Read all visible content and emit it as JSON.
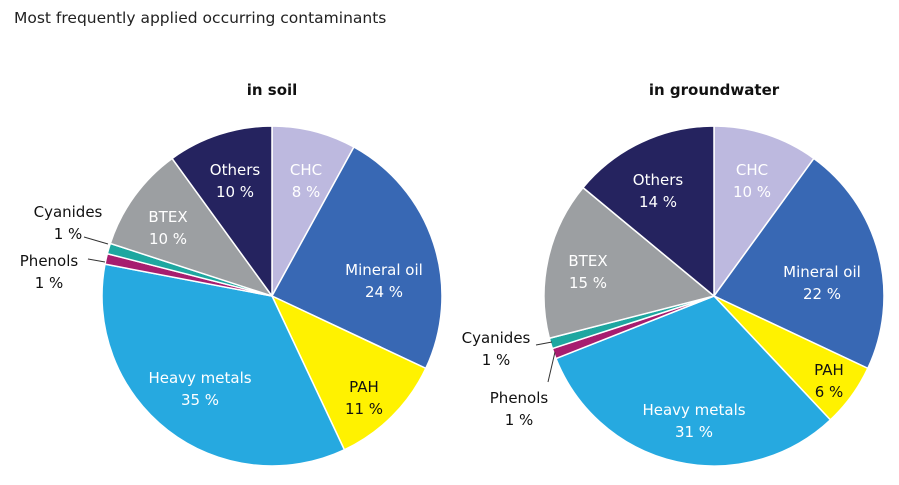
{
  "title": "Most frequently applied occurring contaminants",
  "chart_data": [
    {
      "type": "pie",
      "title": "in soil",
      "unit": "%",
      "slices": [
        {
          "name": "CHC",
          "value": 8,
          "label": "8 %",
          "color": "#BDB9DF"
        },
        {
          "name": "Mineral oil",
          "value": 24,
          "label": "24 %",
          "color": "#3868B4"
        },
        {
          "name": "PAH",
          "value": 11,
          "label": "11 %",
          "color": "#FFF200"
        },
        {
          "name": "Heavy metals",
          "value": 35,
          "label": "35 %",
          "color": "#26A9E0"
        },
        {
          "name": "Phenols",
          "value": 1,
          "label": "1 %",
          "color": "#A71D6F"
        },
        {
          "name": "Cyanides",
          "value": 1,
          "label": "1 %",
          "color": "#1EA7A0"
        },
        {
          "name": "BTEX",
          "value": 10,
          "label": "10 %",
          "color": "#9C9FA2"
        },
        {
          "name": "Others",
          "value": 10,
          "label": "10 %",
          "color": "#25235F"
        }
      ]
    },
    {
      "type": "pie",
      "title": "in groundwater",
      "unit": "%",
      "slices": [
        {
          "name": "CHC",
          "value": 10,
          "label": "10 %",
          "color": "#BDB9DF"
        },
        {
          "name": "Mineral oil",
          "value": 22,
          "label": "22 %",
          "color": "#3868B4"
        },
        {
          "name": "PAH",
          "value": 6,
          "label": "6 %",
          "color": "#FFF200"
        },
        {
          "name": "Heavy metals",
          "value": 31,
          "label": "31 %",
          "color": "#26A9E0"
        },
        {
          "name": "Phenols",
          "value": 1,
          "label": "1 %",
          "color": "#A71D6F"
        },
        {
          "name": "Cyanides",
          "value": 1,
          "label": "1 %",
          "color": "#1EA7A0"
        },
        {
          "name": "BTEX",
          "value": 15,
          "label": "15 %",
          "color": "#9C9FA2"
        },
        {
          "name": "Others",
          "value": 14,
          "label": "14 %",
          "color": "#25235F"
        }
      ]
    }
  ]
}
